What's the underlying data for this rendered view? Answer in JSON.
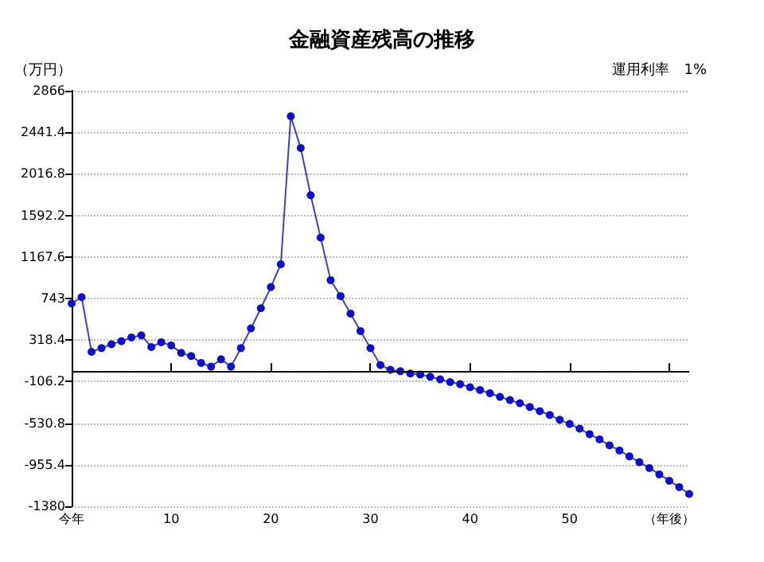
{
  "chart_data": {
    "type": "line",
    "title": "金融資産残高の推移",
    "ylabel": "（万円）",
    "annotations": [
      "運用利率　1%"
    ],
    "x": [
      0,
      1,
      2,
      3,
      4,
      5,
      6,
      7,
      8,
      9,
      10,
      11,
      12,
      13,
      14,
      15,
      16,
      17,
      18,
      19,
      20,
      21,
      22,
      23,
      24,
      25,
      26,
      27,
      28,
      29,
      30,
      31,
      32,
      33,
      34,
      35,
      36,
      37,
      38,
      39,
      40,
      41,
      42,
      43,
      44,
      45,
      46,
      47,
      48,
      49,
      50,
      51,
      52,
      53,
      54,
      55,
      56,
      57,
      58,
      59,
      60,
      61,
      62
    ],
    "series": [
      {
        "color": "#1010c8",
        "values": [
          692,
          757,
          198,
          236,
          275,
          307,
          345,
          366,
          247,
          296,
          264,
          187,
          155,
          85,
          47,
          122,
          47,
          236,
          438,
          643,
          860,
          1093,
          2606,
          2281,
          1798,
          1365,
          931,
          768,
          589,
          410,
          236,
          63,
          15,
          0,
          -24,
          -34,
          -57,
          -83,
          -111,
          -132,
          -164,
          -192,
          -225,
          -262,
          -295,
          -327,
          -366,
          -408,
          -447,
          -496,
          -539,
          -587,
          -643,
          -696,
          -757,
          -810,
          -870,
          -929,
          -989,
          -1054,
          -1119,
          -1184,
          -1254
        ]
      }
    ],
    "xlim": [
      0,
      62
    ],
    "xticks": [
      {
        "value": 0,
        "label": "今年"
      },
      10,
      20,
      30,
      40,
      50,
      {
        "value": 60,
        "label": "（年後）"
      }
    ],
    "ylim": [
      -1380,
      2866
    ],
    "yticks": [
      -1380,
      -955.4,
      -530.8,
      -106.2,
      318.4,
      743,
      1167.6,
      1592.2,
      2016.8,
      2441.4,
      2866
    ],
    "ref_lines": [
      {
        "axis": "y",
        "value": 0,
        "color": "#000000"
      }
    ],
    "grid": "y",
    "marker": "circle",
    "line_style": "solid"
  }
}
